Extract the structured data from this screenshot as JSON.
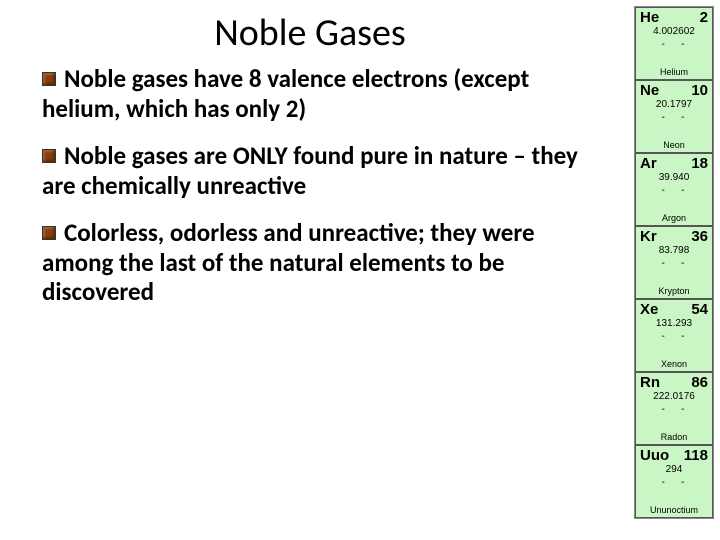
{
  "title": "Noble Gases",
  "bullets": [
    "Noble gases have 8 valence electrons (except helium, which has only 2)",
    "Noble gases are ONLY found pure in nature – they are chemically unreactive",
    "Colorless, odorless and unreactive; they were among the last of the natural elements to be discovered"
  ],
  "colors": {
    "background": "#ffffff",
    "text": "#000000",
    "bullet_icon": "#883c0a",
    "cell_bg": "#caf5c4",
    "cell_border": "#555555"
  },
  "typography": {
    "title_fontsize": 38,
    "bullet_fontsize": 25,
    "bullet_weight": 700
  },
  "elements": [
    {
      "symbol": "He",
      "number": "2",
      "mass": "4.002602",
      "name": "Helium"
    },
    {
      "symbol": "Ne",
      "number": "10",
      "mass": "20.1797",
      "name": "Neon"
    },
    {
      "symbol": "Ar",
      "number": "18",
      "mass": "39.940",
      "name": "Argon"
    },
    {
      "symbol": "Kr",
      "number": "36",
      "mass": "83.798",
      "name": "Krypton"
    },
    {
      "symbol": "Xe",
      "number": "54",
      "mass": "131.293",
      "name": "Xenon"
    },
    {
      "symbol": "Rn",
      "number": "86",
      "mass": "222.0176",
      "name": "Radon"
    },
    {
      "symbol": "Uuo",
      "number": "118",
      "mass": "294",
      "name": "Ununoctium"
    }
  ]
}
